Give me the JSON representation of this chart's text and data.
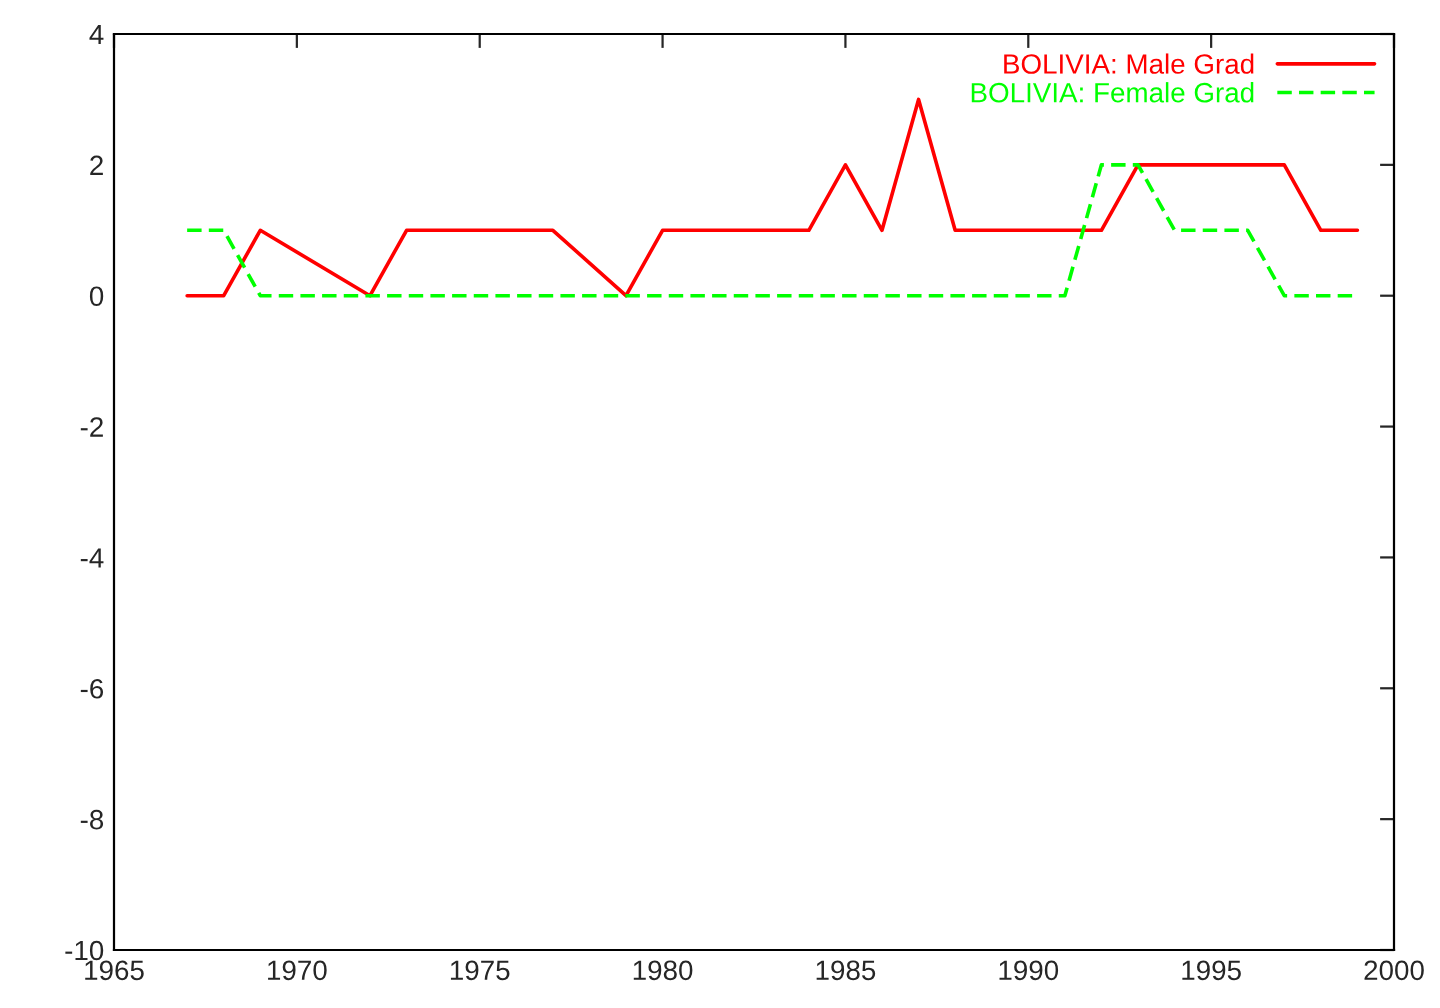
{
  "chart_data": {
    "type": "line",
    "xlim": [
      1965,
      2000
    ],
    "ylim": [
      -10,
      4
    ],
    "xticks": [
      1965,
      1970,
      1975,
      1980,
      1985,
      1990,
      1995,
      2000
    ],
    "yticks": [
      -10,
      -8,
      -6,
      -4,
      -2,
      0,
      2,
      4
    ],
    "legend": "top right",
    "grid": false,
    "series": [
      {
        "name": "BOLIVIA: Male Grad",
        "color": "#ff0000",
        "line_style": "solid",
        "x": [
          1967,
          1968,
          1969,
          1972,
          1973,
          1974,
          1975,
          1976,
          1977,
          1979,
          1980,
          1981,
          1982,
          1983,
          1984,
          1985,
          1986,
          1987,
          1988,
          1989,
          1990,
          1991,
          1992,
          1993,
          1994,
          1995,
          1996,
          1997,
          1998,
          1999
        ],
        "values": [
          0,
          0,
          1,
          0,
          1,
          1,
          1,
          1,
          1,
          0,
          1,
          1,
          1,
          1,
          1,
          2,
          1,
          3,
          1,
          1,
          1,
          1,
          1,
          2,
          2,
          2,
          2,
          2,
          1,
          1
        ]
      },
      {
        "name": "BOLIVIA: Female Grad",
        "color": "#00ff00",
        "line_style": "dashed",
        "x": [
          1967,
          1968,
          1969,
          1970,
          1971,
          1972,
          1973,
          1974,
          1975,
          1976,
          1977,
          1978,
          1979,
          1980,
          1981,
          1982,
          1983,
          1984,
          1985,
          1986,
          1987,
          1988,
          1989,
          1990,
          1991,
          1992,
          1993,
          1994,
          1995,
          1996,
          1997,
          1998,
          1999
        ],
        "values": [
          1,
          1,
          0,
          0,
          0,
          0,
          0,
          0,
          0,
          0,
          0,
          0,
          0,
          0,
          0,
          0,
          0,
          0,
          0,
          0,
          0,
          0,
          0,
          0,
          0,
          2,
          2,
          1,
          1,
          1,
          0,
          0,
          0
        ]
      }
    ]
  }
}
